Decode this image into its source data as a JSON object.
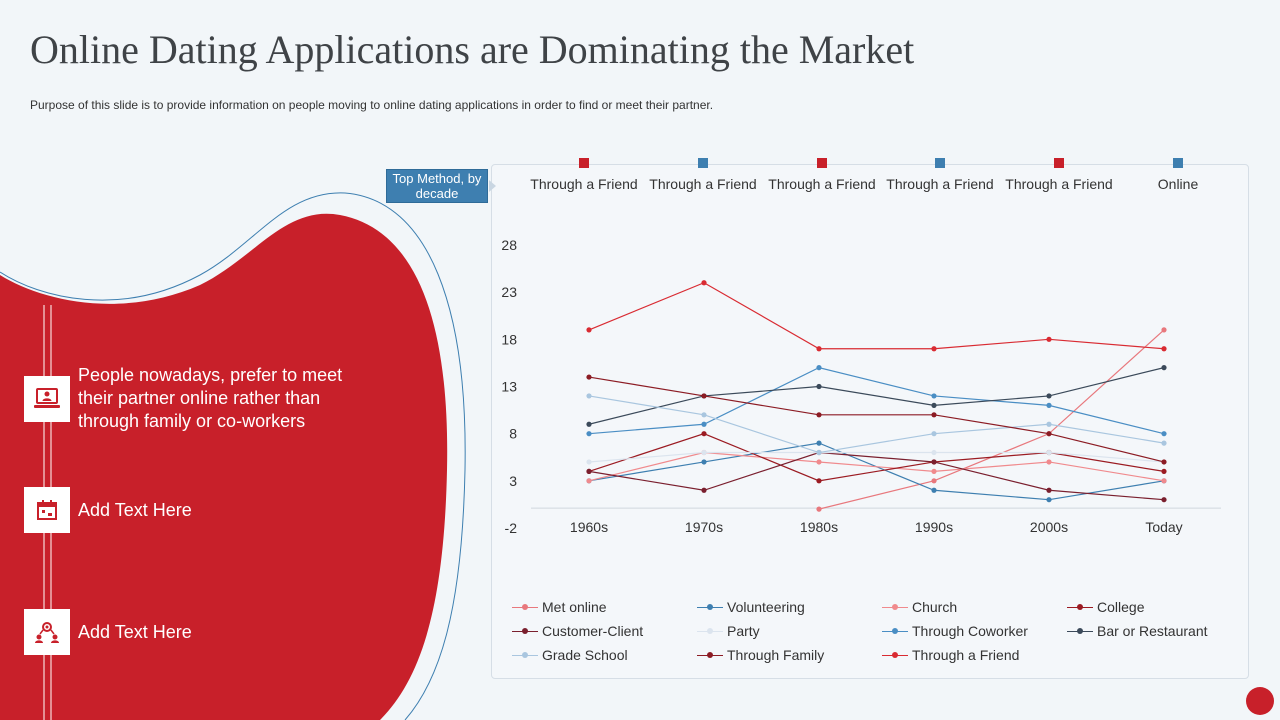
{
  "header": {
    "title": "Online Dating Applications are Dominating the Market",
    "subtitle": "Purpose of this slide is to provide  information  on  people  moving  to online dating  applications  in order to find  or  meet  their partner."
  },
  "sidebar": {
    "items": [
      {
        "icon": "laptop-user-icon",
        "text": "People nowadays, prefer to meet their partner online rather than through family or co-workers"
      },
      {
        "icon": "calendar-icon",
        "text": "Add Text Here"
      },
      {
        "icon": "users-network-icon",
        "text": "Add Text Here"
      }
    ]
  },
  "colors": {
    "accent_red": "#c8202a",
    "accent_blue": "#3e7fb0",
    "background": "#f2f6f9"
  },
  "top_method": {
    "badge": "Top Method, by decade",
    "entries": [
      {
        "label": "Through a Friend",
        "color": "#c8202a"
      },
      {
        "label": "Through a Friend",
        "color": "#3e7fb0"
      },
      {
        "label": "Through a Friend",
        "color": "#c8202a"
      },
      {
        "label": "Through a Friend",
        "color": "#3e7fb0"
      },
      {
        "label": "Through a Friend",
        "color": "#c8202a"
      },
      {
        "label": "Online",
        "color": "#3e7fb0"
      }
    ]
  },
  "chart_data": {
    "type": "line",
    "title": "",
    "xlabel": "",
    "ylabel": "",
    "categories": [
      "1960s",
      "1970s",
      "1980s",
      "1990s",
      "2000s",
      "Today"
    ],
    "yticks": [
      -2,
      3,
      8,
      13,
      18,
      23,
      28
    ],
    "ylim": [
      -2,
      28
    ],
    "legend_position": "bottom",
    "series": [
      {
        "name": "Met online",
        "color": "#e8787d",
        "values": [
          null,
          null,
          0,
          3,
          8,
          19
        ]
      },
      {
        "name": "Volunteering",
        "color": "#3e7fb0",
        "values": [
          3,
          5,
          7,
          2,
          1,
          3
        ]
      },
      {
        "name": "Church",
        "color": "#f08a8d",
        "values": [
          3,
          6,
          5,
          4,
          5,
          3
        ]
      },
      {
        "name": "College",
        "color": "#9b1b22",
        "values": [
          4,
          8,
          3,
          5,
          6,
          4
        ]
      },
      {
        "name": "Customer-Client",
        "color": "#7a1f2e",
        "values": [
          4,
          2,
          6,
          5,
          2,
          1
        ]
      },
      {
        "name": "Party",
        "color": "#dbe4ee",
        "values": [
          5,
          6,
          6,
          6,
          6,
          5
        ]
      },
      {
        "name": "Through Coworker",
        "color": "#4a8ec4",
        "values": [
          8,
          9,
          15,
          12,
          11,
          8
        ]
      },
      {
        "name": "Bar or Restaurant",
        "color": "#3b4a5a",
        "values": [
          9,
          12,
          13,
          11,
          12,
          15
        ]
      },
      {
        "name": "Grade School",
        "color": "#a9c6df",
        "values": [
          12,
          10,
          6,
          8,
          9,
          7
        ]
      },
      {
        "name": "Through Family",
        "color": "#8c1c24",
        "values": [
          14,
          12,
          10,
          10,
          8,
          5
        ]
      },
      {
        "name": "Through a Friend",
        "color": "#d92b32",
        "values": [
          19,
          24,
          17,
          17,
          18,
          17
        ]
      }
    ]
  }
}
